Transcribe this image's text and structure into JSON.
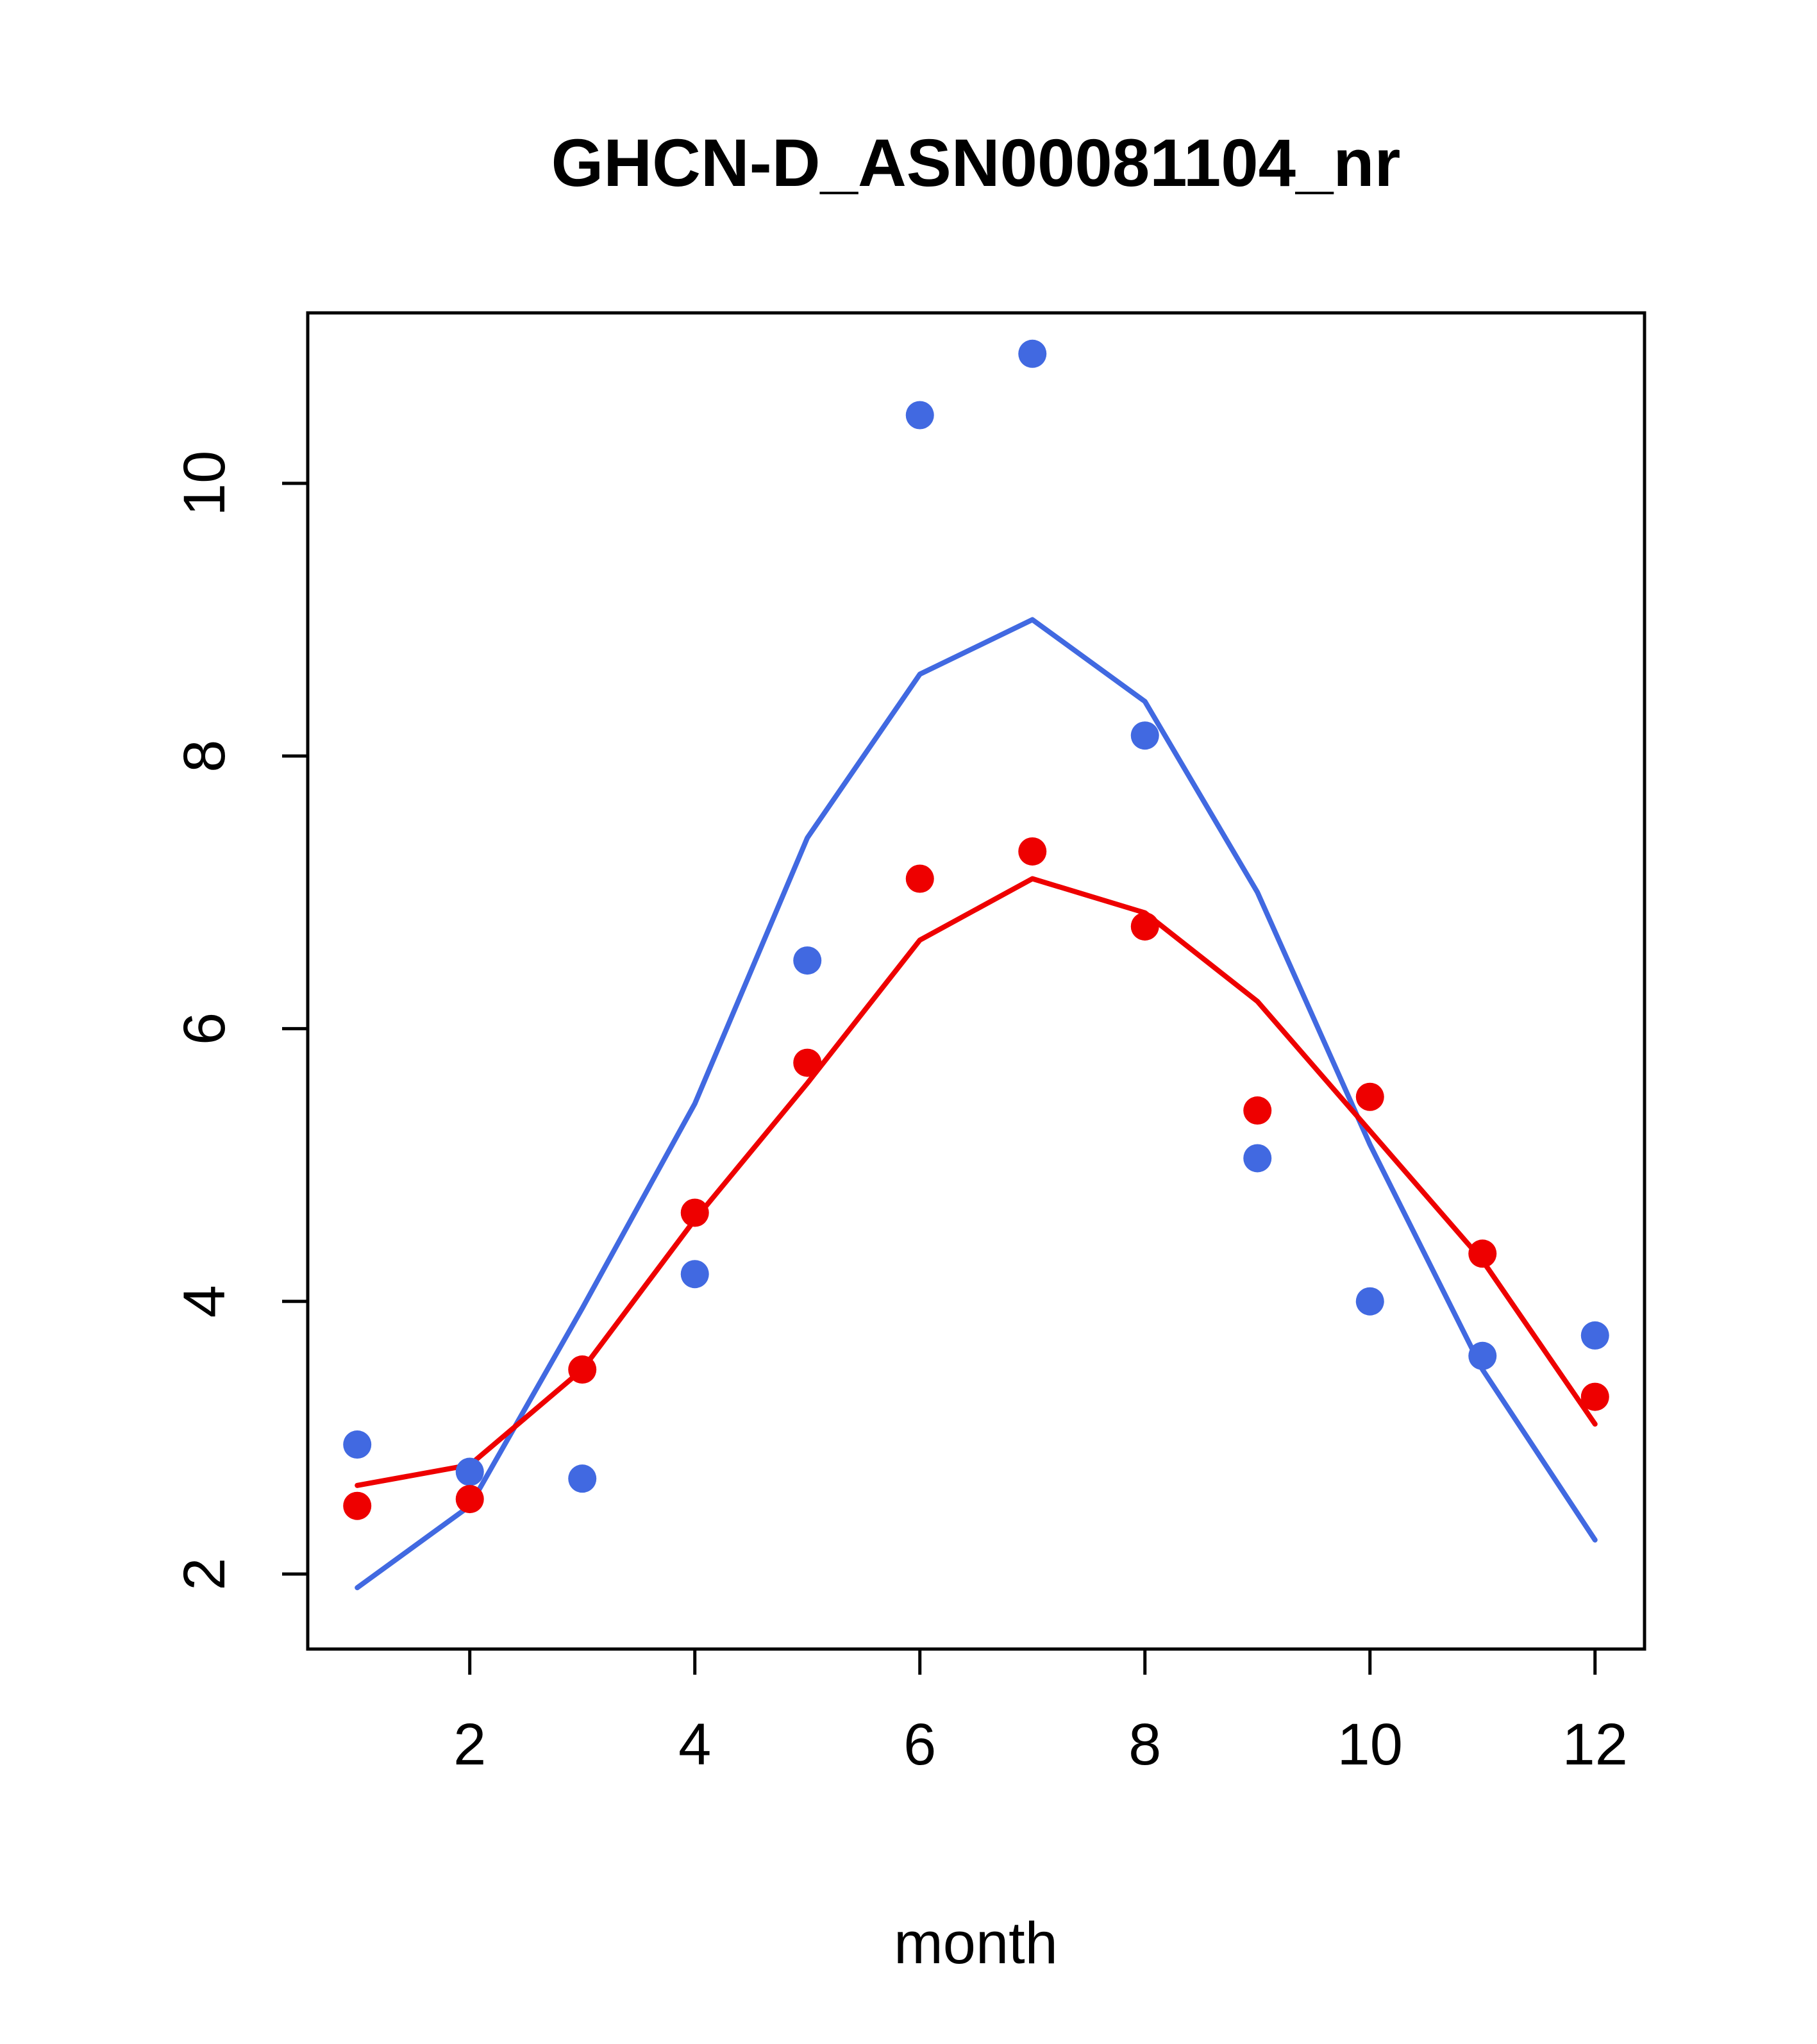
{
  "chart_data": {
    "type": "line",
    "title": "GHCN-D_ASN00081104_nr",
    "xlabel": "month",
    "ylabel": "",
    "xlim": [
      0.56,
      12.44
    ],
    "ylim": [
      1.45,
      11.25
    ],
    "xticks": [
      2,
      4,
      6,
      8,
      10,
      12
    ],
    "yticks": [
      2,
      4,
      6,
      8,
      10
    ],
    "grid": false,
    "legend": "none",
    "x": [
      1,
      2,
      3,
      4,
      5,
      6,
      7,
      8,
      9,
      10,
      11,
      12
    ],
    "colors": {
      "blue": "#4169E1",
      "red": "#EE0000"
    },
    "series": [
      {
        "name": "blue-fit-line",
        "kind": "line",
        "color": "#4169E1",
        "values": [
          1.9,
          2.5,
          3.95,
          5.45,
          7.4,
          8.6,
          9.0,
          8.4,
          7.0,
          5.15,
          3.5,
          2.25
        ]
      },
      {
        "name": "red-fit-line",
        "kind": "line",
        "color": "#EE0000",
        "values": [
          2.65,
          2.8,
          3.5,
          4.6,
          5.6,
          6.65,
          7.1,
          6.85,
          6.2,
          5.25,
          4.3,
          3.1
        ]
      },
      {
        "name": "blue-monthly-points",
        "kind": "points",
        "color": "#4169E1",
        "values": [
          2.95,
          2.75,
          2.7,
          4.2,
          6.5,
          10.5,
          10.95,
          8.15,
          5.05,
          4.0,
          3.6,
          3.75
        ]
      },
      {
        "name": "red-monthly-points",
        "kind": "points",
        "color": "#EE0000",
        "values": [
          2.5,
          2.55,
          3.5,
          4.65,
          5.75,
          7.1,
          7.3,
          6.75,
          5.4,
          5.5,
          4.35,
          3.3
        ]
      }
    ]
  }
}
